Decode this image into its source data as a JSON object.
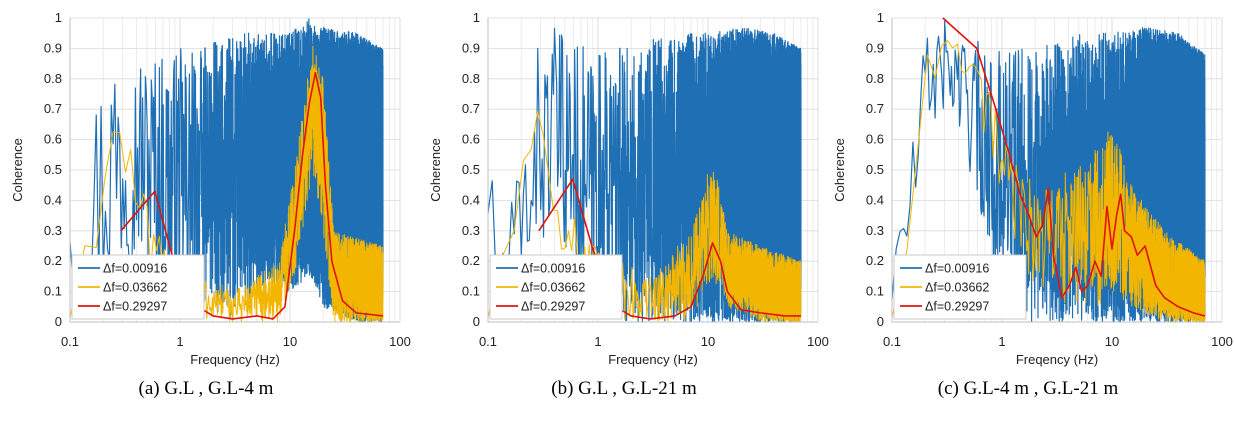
{
  "colors": {
    "df1": "#1f6fb4",
    "df2": "#f2b600",
    "df3": "#e3120b",
    "grid": "#d9d9d9"
  },
  "x_ticks": [
    "0.1",
    "1",
    "10",
    "100"
  ],
  "y_ticks": [
    "0",
    "0.1",
    "0.2",
    "0.3",
    "0.4",
    "0.5",
    "0.6",
    "0.7",
    "0.8",
    "0.9",
    "1"
  ],
  "legend": [
    "Δf=0.00916",
    "Δf=0.03662",
    "Δf=0.29297"
  ],
  "chart_data": [
    {
      "type": "line",
      "caption": "(a) G.L , G.L-4 m",
      "xlabel": "Frequency (Hz)",
      "ylabel": "Coherence",
      "xscale": "log",
      "xlim": [
        0.1,
        100
      ],
      "ylim": [
        0,
        1
      ],
      "grid": true,
      "legend_position": "bottom-left",
      "series": [
        {
          "name": "Δf=0.00916",
          "style": "noise",
          "envelope": [
            [
              0.1,
              0.1,
              0.7
            ],
            [
              0.12,
              0.0,
              0.3
            ],
            [
              0.18,
              0.0,
              0.85
            ],
            [
              0.25,
              0.1,
              0.97
            ],
            [
              0.4,
              0.2,
              0.9
            ],
            [
              0.8,
              0.05,
              0.9
            ],
            [
              1.5,
              0.05,
              0.9
            ],
            [
              3,
              0.0,
              0.95
            ],
            [
              6,
              0.1,
              0.95
            ],
            [
              10,
              0.1,
              0.95
            ],
            [
              15,
              0.15,
              1.0
            ],
            [
              20,
              0.05,
              0.97
            ],
            [
              40,
              0.0,
              0.95
            ],
            [
              70,
              0.0,
              0.9
            ]
          ]
        },
        {
          "name": "Δf=0.03662",
          "style": "noise",
          "envelope": [
            [
              0.1,
              0.0,
              0.05
            ],
            [
              0.2,
              0.3,
              0.6
            ],
            [
              0.28,
              0.55,
              0.76
            ],
            [
              0.4,
              0.3,
              0.5
            ],
            [
              0.6,
              0.05,
              0.3
            ],
            [
              1,
              0.0,
              0.2
            ],
            [
              3,
              0.0,
              0.1
            ],
            [
              8,
              0.0,
              0.2
            ],
            [
              12,
              0.2,
              0.6
            ],
            [
              16,
              0.5,
              0.92
            ],
            [
              20,
              0.3,
              0.8
            ],
            [
              25,
              0.0,
              0.3
            ],
            [
              70,
              0.0,
              0.25
            ]
          ]
        },
        {
          "name": "Δf=0.29297",
          "style": "smooth",
          "x": [
            0.29,
            0.59,
            0.88,
            1.17,
            1.46,
            2,
            3,
            5,
            7,
            9,
            11,
            13,
            15,
            17,
            19,
            21,
            24,
            30,
            40,
            70
          ],
          "y": [
            0.3,
            0.43,
            0.2,
            0.1,
            0.05,
            0.02,
            0.01,
            0.02,
            0.01,
            0.05,
            0.3,
            0.55,
            0.72,
            0.82,
            0.74,
            0.45,
            0.2,
            0.07,
            0.03,
            0.02
          ]
        }
      ]
    },
    {
      "type": "line",
      "caption": "(b) G.L , G.L-21 m",
      "xlabel": "Frequency (Hz)",
      "ylabel": "Coherence",
      "xscale": "log",
      "xlim": [
        0.1,
        100
      ],
      "ylim": [
        0,
        1
      ],
      "grid": true,
      "legend_position": "bottom-left",
      "series": [
        {
          "name": "Δf=0.00916",
          "style": "noise",
          "envelope": [
            [
              0.1,
              0.2,
              0.75
            ],
            [
              0.12,
              0.0,
              0.25
            ],
            [
              0.2,
              0.0,
              0.55
            ],
            [
              0.25,
              0.2,
              0.89
            ],
            [
              0.4,
              0.3,
              0.97
            ],
            [
              0.8,
              0.05,
              0.9
            ],
            [
              1.5,
              0.0,
              0.9
            ],
            [
              3,
              0.0,
              0.93
            ],
            [
              6,
              0.0,
              0.95
            ],
            [
              10,
              0.0,
              0.95
            ],
            [
              20,
              0.0,
              0.97
            ],
            [
              40,
              0.0,
              0.95
            ],
            [
              70,
              0.0,
              0.9
            ]
          ]
        },
        {
          "name": "Δf=0.03662",
          "style": "noise",
          "envelope": [
            [
              0.1,
              0.0,
              0.05
            ],
            [
              0.2,
              0.3,
              0.6
            ],
            [
              0.28,
              0.6,
              0.78
            ],
            [
              0.4,
              0.3,
              0.6
            ],
            [
              0.6,
              0.1,
              0.4
            ],
            [
              1,
              0.0,
              0.25
            ],
            [
              3,
              0.0,
              0.15
            ],
            [
              7,
              0.0,
              0.3
            ],
            [
              11,
              0.15,
              0.55
            ],
            [
              15,
              0.05,
              0.3
            ],
            [
              30,
              0.0,
              0.25
            ],
            [
              70,
              0.0,
              0.2
            ]
          ]
        },
        {
          "name": "Δf=0.29297",
          "style": "smooth",
          "x": [
            0.29,
            0.59,
            0.88,
            1.17,
            1.46,
            2,
            3,
            5,
            7,
            9,
            11,
            13,
            15,
            20,
            30,
            50,
            70
          ],
          "y": [
            0.3,
            0.47,
            0.25,
            0.12,
            0.05,
            0.02,
            0.01,
            0.02,
            0.05,
            0.15,
            0.26,
            0.2,
            0.1,
            0.04,
            0.03,
            0.02,
            0.02
          ]
        }
      ]
    },
    {
      "type": "line",
      "caption": "(c) G.L-4 m , G.L-21 m",
      "xlabel": "Freqency (Hz)",
      "ylabel": "Coherence",
      "xscale": "log",
      "xlim": [
        0.1,
        100
      ],
      "ylim": [
        0,
        1
      ],
      "grid": true,
      "legend_position": "bottom-left",
      "series": [
        {
          "name": "Δf=0.00916",
          "style": "noise",
          "envelope": [
            [
              0.1,
              0.0,
              0.25
            ],
            [
              0.15,
              0.2,
              0.6
            ],
            [
              0.2,
              0.6,
              0.95
            ],
            [
              0.3,
              0.7,
              1.0
            ],
            [
              0.5,
              0.5,
              0.95
            ],
            [
              0.8,
              0.2,
              0.9
            ],
            [
              1.5,
              0.0,
              0.9
            ],
            [
              3,
              0.0,
              0.93
            ],
            [
              6,
              0.0,
              0.95
            ],
            [
              10,
              0.0,
              0.95
            ],
            [
              20,
              0.0,
              0.97
            ],
            [
              40,
              0.0,
              0.95
            ],
            [
              70,
              0.0,
              0.88
            ]
          ]
        },
        {
          "name": "Δf=0.03662",
          "style": "noise",
          "envelope": [
            [
              0.1,
              0.0,
              0.05
            ],
            [
              0.15,
              0.2,
              0.5
            ],
            [
              0.2,
              0.75,
              0.9
            ],
            [
              0.3,
              0.85,
              0.94
            ],
            [
              0.5,
              0.8,
              0.9
            ],
            [
              0.8,
              0.5,
              0.75
            ],
            [
              1.2,
              0.3,
              0.55
            ],
            [
              2,
              0.1,
              0.45
            ],
            [
              4,
              0.05,
              0.5
            ],
            [
              8,
              0.05,
              0.6
            ],
            [
              10,
              0.1,
              0.65
            ],
            [
              15,
              0.05,
              0.45
            ],
            [
              30,
              0.0,
              0.3
            ],
            [
              70,
              0.0,
              0.2
            ]
          ]
        },
        {
          "name": "Δf=0.29297",
          "style": "smooth",
          "x": [
            0.29,
            0.59,
            0.88,
            1.17,
            1.46,
            1.76,
            2.05,
            2.34,
            2.64,
            2.93,
            3.5,
            4.1,
            4.7,
            5.3,
            6,
            7,
            8,
            9,
            10,
            11,
            12,
            13,
            15,
            17,
            20,
            25,
            30,
            40,
            55,
            70
          ],
          "y": [
            1.0,
            0.9,
            0.7,
            0.55,
            0.42,
            0.35,
            0.28,
            0.32,
            0.44,
            0.22,
            0.08,
            0.12,
            0.18,
            0.1,
            0.12,
            0.2,
            0.15,
            0.38,
            0.24,
            0.35,
            0.42,
            0.3,
            0.28,
            0.22,
            0.25,
            0.12,
            0.08,
            0.05,
            0.03,
            0.02
          ]
        }
      ]
    }
  ]
}
